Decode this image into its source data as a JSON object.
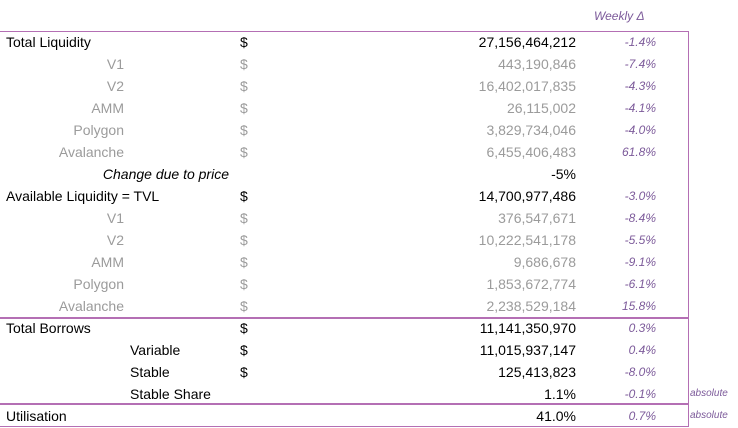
{
  "header": {
    "weekly_label": "Weekly Δ"
  },
  "rows": [
    {
      "label": "Total Liquidity",
      "style": "main",
      "dollar": "$",
      "value": "27,156,464,212",
      "weekly": "-1.4%",
      "note": "",
      "muted": false
    },
    {
      "label": "V1",
      "style": "sub",
      "dollar": "$",
      "value": "443,190,846",
      "weekly": "-7.4%",
      "note": "",
      "muted": true
    },
    {
      "label": "V2",
      "style": "sub",
      "dollar": "$",
      "value": "16,402,017,835",
      "weekly": "-4.3%",
      "note": "",
      "muted": true
    },
    {
      "label": "AMM",
      "style": "sub",
      "dollar": "$",
      "value": "26,115,002",
      "weekly": "-4.1%",
      "note": "",
      "muted": true
    },
    {
      "label": "Polygon",
      "style": "sub",
      "dollar": "$",
      "value": "3,829,734,046",
      "weekly": "-4.0%",
      "note": "",
      "muted": true
    },
    {
      "label": "Avalanche",
      "style": "sub",
      "dollar": "$",
      "value": "6,455,406,483",
      "weekly": "61.8%",
      "note": "",
      "muted": true
    },
    {
      "label": "Change due to price",
      "style": "italic",
      "dollar": "",
      "value": "-5%",
      "weekly": "",
      "note": "",
      "muted": false
    },
    {
      "label": "Available Liquidity  = TVL",
      "style": "main",
      "dollar": "$",
      "value": "14,700,977,486",
      "weekly": "-3.0%",
      "note": "",
      "muted": false
    },
    {
      "label": "V1",
      "style": "sub",
      "dollar": "$",
      "value": "376,547,671",
      "weekly": "-8.4%",
      "note": "",
      "muted": true
    },
    {
      "label": "V2",
      "style": "sub",
      "dollar": "$",
      "value": "10,222,541,178",
      "weekly": "-5.5%",
      "note": "",
      "muted": true
    },
    {
      "label": "AMM",
      "style": "sub",
      "dollar": "$",
      "value": "9,686,678",
      "weekly": "-9.1%",
      "note": "",
      "muted": true
    },
    {
      "label": "Polygon",
      "style": "sub",
      "dollar": "$",
      "value": "1,853,672,774",
      "weekly": "-6.1%",
      "note": "",
      "muted": true
    },
    {
      "label": "Avalanche",
      "style": "sub",
      "dollar": "$",
      "value": "2,238,529,184",
      "weekly": "15.8%",
      "note": "",
      "muted": true
    },
    {
      "label": "Total Borrows",
      "style": "main",
      "dollar": "$",
      "value": "11,141,350,970",
      "weekly": "0.3%",
      "note": "",
      "muted": false
    },
    {
      "label": "Variable",
      "style": "mid",
      "dollar": "$",
      "value": "11,015,937,147",
      "weekly": "0.4%",
      "note": "",
      "muted": false
    },
    {
      "label": "Stable",
      "style": "mid",
      "dollar": "$",
      "value": "125,413,823",
      "weekly": "-8.0%",
      "note": "",
      "muted": false
    },
    {
      "label": "Stable Share",
      "style": "mid",
      "dollar": "",
      "value": "1.1%",
      "weekly": "-0.1%",
      "note": "absolute",
      "muted": false
    },
    {
      "label": "Utilisation",
      "style": "main",
      "dollar": "",
      "value": "41.0%",
      "weekly": "0.7%",
      "note": "absolute",
      "muted": false
    }
  ]
}
